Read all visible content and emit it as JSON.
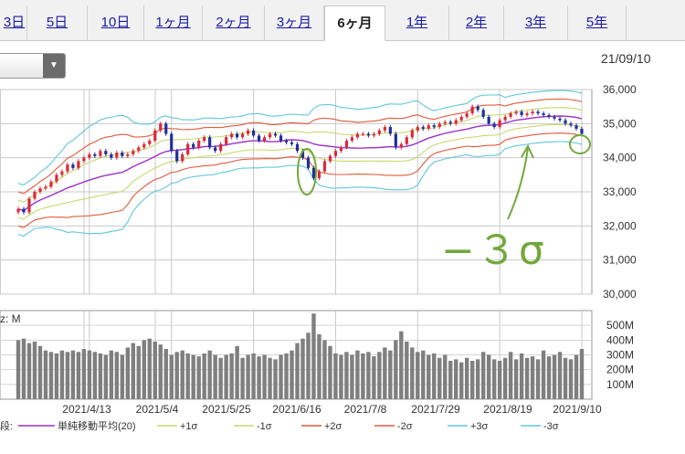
{
  "tabs": [
    "3日",
    "5日",
    "10日",
    "1ヶ月",
    "2ヶ月",
    "3ヶ月",
    "6ヶ月",
    "1年",
    "2年",
    "3年",
    "5年"
  ],
  "active_tab": "6ヶ月",
  "date_label": "21/09/10",
  "annotation": "−３σ",
  "volume_unit_label": "z: M",
  "legend_lead": "段:",
  "colors": {
    "sma": "#9b30c8",
    "p1": "#c8d96e",
    "m1": "#c8d96e",
    "p2": "#e05a3a",
    "m2": "#e05a3a",
    "p3": "#5fc8dc",
    "m3": "#5fc8dc",
    "up": "#d92b3a",
    "down": "#1f2f9a",
    "volume": "#7f7f7f",
    "annotation": "#72a83a"
  },
  "chart_data": {
    "type": "candlestick",
    "x_tick_labels": [
      "2021/4/13",
      "2021/5/4",
      "2021/5/25",
      "2021/6/16",
      "2021/7/8",
      "2021/7/29",
      "2021/8/19",
      "2021/9/10"
    ],
    "price_axis": {
      "ticks": [
        30000,
        31000,
        32000,
        33000,
        34000,
        35000,
        36000
      ],
      "labels": [
        "30,000",
        "31,000",
        "32,000",
        "33,000",
        "34,000",
        "35,000",
        "36,000"
      ],
      "ylim": [
        30000,
        36000
      ]
    },
    "volume_axis": {
      "ticks": [
        100,
        200,
        300,
        400,
        500
      ],
      "labels": [
        "100M",
        "200M",
        "300M",
        "400M",
        "500M"
      ],
      "ylim": [
        0,
        600
      ]
    },
    "legend": [
      {
        "label": "単純移動平均(20)",
        "key": "sma"
      },
      {
        "label": "+1σ",
        "key": "p1"
      },
      {
        "label": "-1σ",
        "key": "m1"
      },
      {
        "label": "+2σ",
        "key": "p2"
      },
      {
        "label": "-2σ",
        "key": "m2"
      },
      {
        "label": "+3σ",
        "key": "p3"
      },
      {
        "label": "-3σ",
        "key": "m3"
      }
    ],
    "close": [
      32500,
      32400,
      32800,
      33000,
      33100,
      33150,
      33300,
      33500,
      33600,
      33800,
      33700,
      33900,
      34000,
      34100,
      34050,
      34200,
      34100,
      34000,
      34150,
      34050,
      34100,
      34200,
      34300,
      34400,
      34500,
      34800,
      35000,
      34700,
      34200,
      33900,
      34100,
      34400,
      34300,
      34500,
      34600,
      34300,
      34200,
      34400,
      34600,
      34700,
      34600,
      34700,
      34800,
      34650,
      34500,
      34600,
      34700,
      34650,
      34500,
      34450,
      34400,
      34200,
      34000,
      33700,
      33400,
      33600,
      33900,
      34050,
      34200,
      34300,
      34500,
      34600,
      34700,
      34700,
      34650,
      34700,
      34800,
      34900,
      34700,
      34300,
      34400,
      34600,
      34800,
      34900,
      34850,
      34950,
      34900,
      35000,
      35050,
      35000,
      35100,
      35200,
      35300,
      35500,
      35400,
      35200,
      35000,
      34900,
      35100,
      35200,
      35300,
      35350,
      35250,
      35300,
      35350,
      35300,
      35250,
      35200,
      35150,
      35100,
      35000,
      34950,
      34850,
      34700
    ],
    "volume": [
      400,
      410,
      380,
      390,
      360,
      330,
      320,
      310,
      330,
      320,
      330,
      320,
      340,
      330,
      320,
      310,
      300,
      330,
      320,
      300,
      350,
      380,
      360,
      400,
      410,
      390,
      370,
      340,
      300,
      320,
      330,
      310,
      300,
      290,
      310,
      330,
      300,
      280,
      300,
      310,
      360,
      280,
      300,
      310,
      290,
      300,
      280,
      270,
      300,
      310,
      330,
      380,
      410,
      450,
      580,
      440,
      400,
      360,
      310,
      300,
      320,
      300,
      330,
      310,
      320,
      290,
      320,
      350,
      330,
      400,
      460,
      390,
      350,
      320,
      330,
      300,
      310,
      280,
      300,
      260,
      270,
      250,
      280,
      260,
      270,
      320,
      300,
      270,
      260,
      280,
      320,
      270,
      310,
      280,
      290,
      270,
      330,
      290,
      300,
      320,
      280,
      270,
      300,
      340
    ]
  }
}
